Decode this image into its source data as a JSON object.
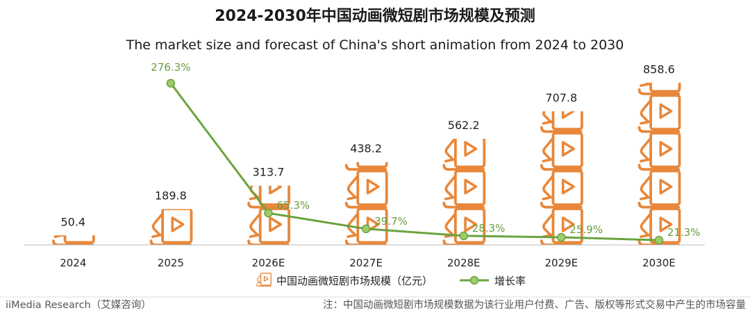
{
  "chart_data": {
    "type": "bar",
    "title": "2024-2030年中国动画微短剧市场规模及预测",
    "subtitle": "The market size and forecast of China's short animation from 2024 to 2030",
    "categories": [
      "2024",
      "2025",
      "2026E",
      "2027E",
      "2028E",
      "2029E",
      "2030E"
    ],
    "series": [
      {
        "name": "中国动画微短剧市场规模（亿元）",
        "type": "bar",
        "values": [
          50.4,
          189.8,
          313.7,
          438.2,
          562.2,
          707.8,
          858.6
        ],
        "labels": [
          "50.4",
          "189.8",
          "313.7",
          "438.2",
          "562.2",
          "707.8",
          "858.6"
        ]
      },
      {
        "name": "增长率",
        "type": "line",
        "values": [
          null,
          276.3,
          65.3,
          39.7,
          28.3,
          25.9,
          21.3
        ],
        "labels": [
          "",
          "276.3%",
          "65.3%",
          "39.7%",
          "28.3%",
          "25.9%",
          "21.3%"
        ]
      }
    ],
    "ylim": [
      0,
      900
    ],
    "rate_ylim": [
      0,
      300
    ],
    "legend": "bottom",
    "grid": false
  },
  "footer": {
    "source": "iiMedia Research（艾媒咨询）",
    "note": "注：中国动画微短剧市场规模数据为该行业用户付费、广告、版权等形式交易中产生的市场容量"
  },
  "colors": {
    "bar_icon": "#e8873a",
    "line": "#6aa33f",
    "marker_fill": "#9ccc6e",
    "rate_text": "#6a9a3f",
    "axis": "#bbbbbb"
  },
  "icons": {
    "bar_unit": "play-book-icon"
  }
}
